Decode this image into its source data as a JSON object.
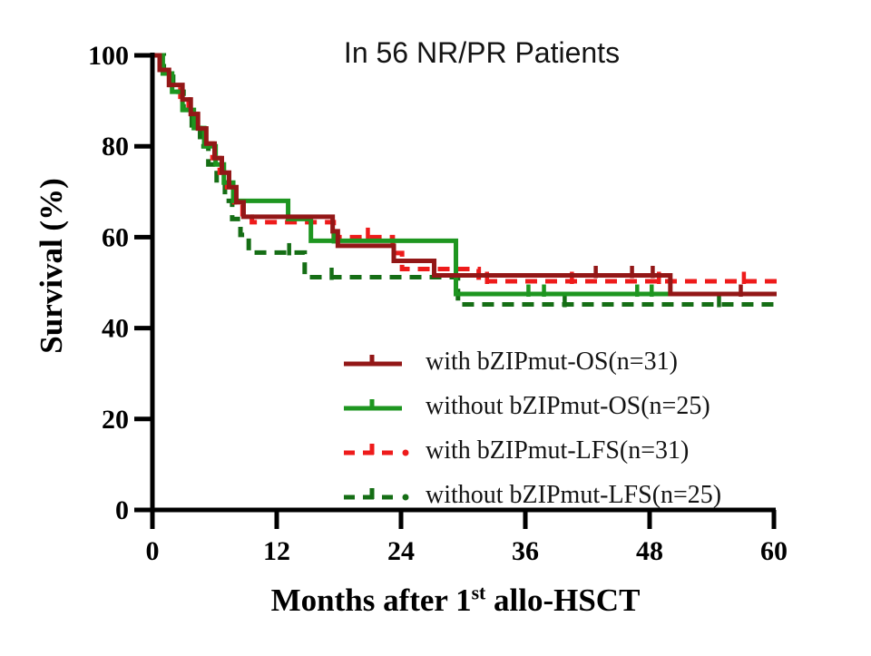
{
  "page": {
    "background": "#ffffff"
  },
  "chart_data": {
    "type": "line",
    "variant": "kaplan_meier_step",
    "title": "In 56 NR/PR Patients",
    "ylabel": "Survival (%)",
    "xlabel": {
      "prefix": "Months after 1",
      "sup": "st",
      "suffix": " allo-HSCT"
    },
    "x_axis": {
      "min": 0,
      "max": 60,
      "ticks": [
        0,
        12,
        24,
        36,
        48,
        60
      ]
    },
    "y_axis": {
      "min": 0,
      "max": 100,
      "ticks": [
        0,
        20,
        40,
        60,
        80,
        100
      ]
    },
    "axis_color": "#000000",
    "grid": false,
    "legend_position": "inside-lower-right",
    "series": [
      {
        "name": "with bZIPmut-OS(n=31)",
        "color": "#931717",
        "style": "solid",
        "points": [
          [
            0,
            100
          ],
          [
            0.7,
            96.8
          ],
          [
            1.6,
            93.5
          ],
          [
            2.9,
            90.3
          ],
          [
            3.7,
            87.1
          ],
          [
            4.4,
            83.9
          ],
          [
            5.2,
            80.6
          ],
          [
            6.0,
            77.4
          ],
          [
            6.7,
            74.2
          ],
          [
            7.4,
            71.0
          ],
          [
            8.1,
            67.7
          ],
          [
            8.8,
            64.5
          ],
          [
            17.4,
            61.3
          ],
          [
            17.9,
            58.1
          ],
          [
            23.3,
            54.8
          ],
          [
            27.2,
            51.6
          ],
          [
            50.0,
            47.5
          ]
        ],
        "censors": [
          [
            42.8,
            51.6
          ],
          [
            46.3,
            51.6
          ],
          [
            48.3,
            51.6
          ],
          [
            56.8,
            47.5
          ]
        ]
      },
      {
        "name": "without bZIPmut-OS(n=25)",
        "color": "#1E9620",
        "style": "solid",
        "points": [
          [
            0,
            100
          ],
          [
            1.0,
            96
          ],
          [
            1.9,
            92
          ],
          [
            2.9,
            88
          ],
          [
            4.0,
            84
          ],
          [
            5.0,
            80
          ],
          [
            6.1,
            76
          ],
          [
            6.9,
            72
          ],
          [
            7.8,
            68
          ],
          [
            13.1,
            64
          ],
          [
            15.3,
            59.2
          ],
          [
            29.3,
            47.5
          ]
        ],
        "censors": [
          [
            17.5,
            59.2
          ],
          [
            36.3,
            47.5
          ],
          [
            37.8,
            47.5
          ],
          [
            46.8,
            47.5
          ],
          [
            48.2,
            47.5
          ]
        ]
      },
      {
        "name": "with bZIPmut-LFS(n=31)",
        "color": "#EE1B1B",
        "style": "dashed",
        "points": [
          [
            0,
            100
          ],
          [
            0.8,
            96.8
          ],
          [
            1.7,
            93.5
          ],
          [
            2.7,
            90.3
          ],
          [
            3.5,
            87.1
          ],
          [
            4.3,
            83.9
          ],
          [
            5.1,
            80.6
          ],
          [
            5.8,
            77.4
          ],
          [
            6.5,
            74.2
          ],
          [
            7.2,
            71.0
          ],
          [
            7.9,
            67.7
          ],
          [
            8.7,
            64.5
          ],
          [
            9.6,
            63.3
          ],
          [
            17.5,
            60.0
          ],
          [
            23.2,
            56.5
          ],
          [
            24.1,
            53.0
          ],
          [
            31.5,
            50.3
          ]
        ],
        "censors": [
          [
            20.8,
            60.0
          ],
          [
            32.3,
            50.3
          ],
          [
            40.5,
            50.3
          ],
          [
            48.9,
            50.3
          ],
          [
            57.1,
            50.3
          ]
        ]
      },
      {
        "name": "without bZIPmut-LFS(n=25)",
        "color": "#156E15",
        "style": "dashed",
        "points": [
          [
            0,
            100
          ],
          [
            1.1,
            96
          ],
          [
            2.0,
            92
          ],
          [
            3.0,
            88
          ],
          [
            3.8,
            84
          ],
          [
            4.6,
            80
          ],
          [
            5.4,
            76
          ],
          [
            6.2,
            72
          ],
          [
            7.0,
            68
          ],
          [
            7.7,
            64
          ],
          [
            8.5,
            60.5
          ],
          [
            9.3,
            56.6
          ],
          [
            14.7,
            51.2
          ],
          [
            29.5,
            45.2
          ]
        ],
        "censors": [
          [
            13.2,
            56.6
          ],
          [
            17.3,
            51.2
          ],
          [
            39.8,
            45.2
          ],
          [
            54.7,
            45.2
          ]
        ]
      }
    ]
  }
}
